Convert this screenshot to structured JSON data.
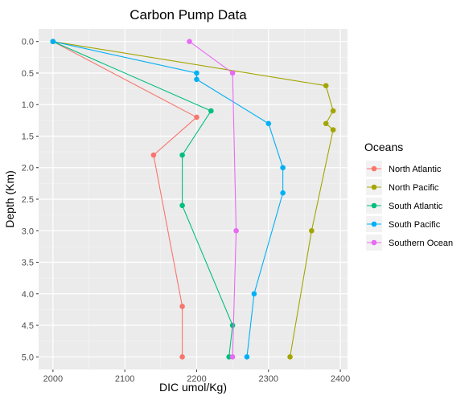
{
  "chart_data": {
    "type": "line",
    "title": "Carbon Pump Data",
    "xlabel": "DIC umol/Kg)",
    "ylabel": "Depth (Km)",
    "xlim": [
      1980,
      2410
    ],
    "ylim": [
      5.2,
      -0.2
    ],
    "y_reversed": true,
    "x_ticks": [
      2000,
      2100,
      2200,
      2300,
      2400
    ],
    "x_tick_labels": [
      "2000",
      "2100",
      "2200",
      "2300",
      "2400"
    ],
    "y_ticks": [
      0.0,
      0.5,
      1.0,
      1.5,
      2.0,
      2.5,
      3.0,
      3.5,
      4.0,
      4.5,
      5.0
    ],
    "y_tick_labels": [
      "0.0",
      "0.5",
      "1.0",
      "1.5",
      "2.0",
      "2.5",
      "3.0",
      "3.5",
      "4.0",
      "4.5",
      "5.0"
    ],
    "grid": true,
    "legend": {
      "title": "Oceans",
      "position": "right"
    },
    "series": [
      {
        "name": "North Atlantic",
        "color": "#F8766D",
        "points": [
          [
            2000,
            0.0
          ],
          [
            2200,
            1.2
          ],
          [
            2140,
            1.8
          ],
          [
            2180,
            4.2
          ],
          [
            2180,
            5.0
          ]
        ]
      },
      {
        "name": "North Pacific",
        "color": "#A3A500",
        "points": [
          [
            2000,
            0.0
          ],
          [
            2380,
            0.7
          ],
          [
            2390,
            1.1
          ],
          [
            2380,
            1.3
          ],
          [
            2390,
            1.4
          ],
          [
            2360,
            3.0
          ],
          [
            2330,
            5.0
          ]
        ]
      },
      {
        "name": "South Atlantic",
        "color": "#00BF7D",
        "points": [
          [
            2000,
            0.0
          ],
          [
            2220,
            1.1
          ],
          [
            2180,
            1.8
          ],
          [
            2180,
            2.6
          ],
          [
            2250,
            4.5
          ],
          [
            2245,
            5.0
          ]
        ]
      },
      {
        "name": "South Pacific",
        "color": "#00B0F6",
        "points": [
          [
            2000,
            0.0
          ],
          [
            2200,
            0.5
          ],
          [
            2200,
            0.6
          ],
          [
            2300,
            1.3
          ],
          [
            2320,
            2.0
          ],
          [
            2320,
            2.4
          ],
          [
            2280,
            4.0
          ],
          [
            2270,
            5.0
          ]
        ]
      },
      {
        "name": "Southern Ocean",
        "color": "#E76BF3",
        "points": [
          [
            2190,
            0.0
          ],
          [
            2250,
            0.5
          ],
          [
            2255,
            3.0
          ],
          [
            2250,
            5.0
          ]
        ]
      }
    ]
  }
}
